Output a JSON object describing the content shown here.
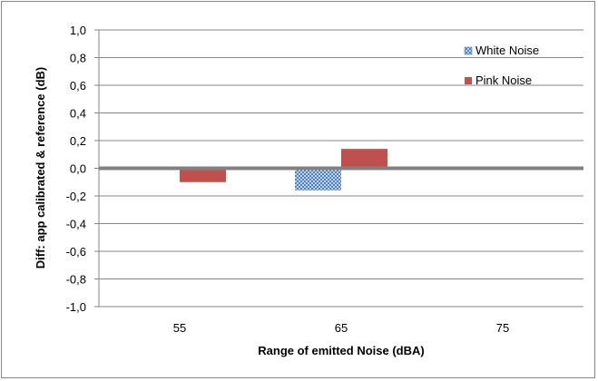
{
  "chart_data": {
    "type": "bar",
    "title": "",
    "xlabel": "Range of emitted Noise (dBA)",
    "ylabel": "Diff: app calibrated & reference (dB)",
    "categories": [
      "55",
      "65",
      "75"
    ],
    "series": [
      {
        "name": "White Noise",
        "values": [
          null,
          -0.16,
          null
        ],
        "color": "#4F81BD",
        "pattern": "crosshatch"
      },
      {
        "name": "Pink Noise",
        "values": [
          -0.1,
          0.14,
          null
        ],
        "color": "#C0504D",
        "pattern": "solid"
      }
    ],
    "ylim": [
      -1.0,
      1.0
    ],
    "ytick_step": 0.2,
    "ytick_labels": [
      "1,0",
      "0,8",
      "0,6",
      "0,4",
      "0,2",
      "0,0",
      "-0,2",
      "-0,4",
      "-0,6",
      "-0,8",
      "-1,0"
    ],
    "grid": true,
    "legend_position": "top-right",
    "zero_line_color": "#808080"
  }
}
